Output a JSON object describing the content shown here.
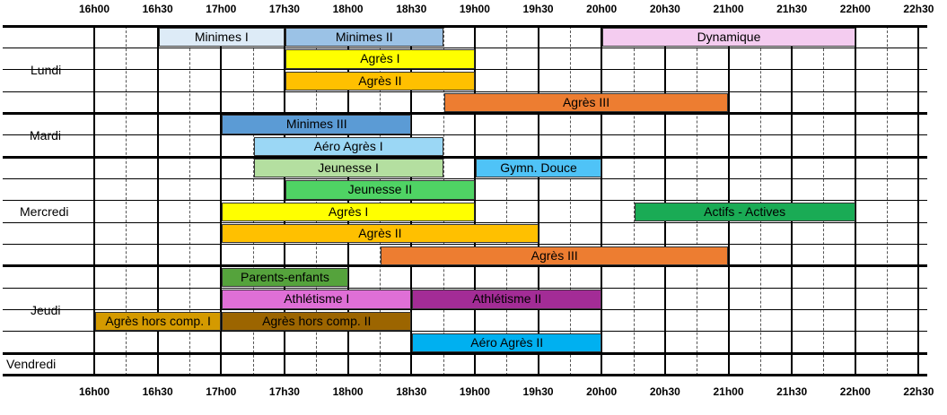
{
  "times": [
    "16h00",
    "16h30",
    "17h00",
    "17h30",
    "18h00",
    "18h30",
    "19h00",
    "19h30",
    "20h00",
    "20h30",
    "21h00",
    "21h30",
    "22h00",
    "22h30"
  ],
  "days": [
    {
      "name": "Lundi",
      "rows": 4
    },
    {
      "name": "Mardi",
      "rows": 2
    },
    {
      "name": "Mercredi",
      "rows": 5
    },
    {
      "name": "Jeudi",
      "rows": 4
    },
    {
      "name": "Vendredi",
      "rows": 1
    }
  ],
  "activities": [
    {
      "day": 0,
      "row": 0,
      "start": 16.5,
      "end": 17.5,
      "label": "Minimes I",
      "color": "#ddebf7"
    },
    {
      "day": 0,
      "row": 0,
      "start": 17.5,
      "end": 18.75,
      "label": "Minimes II",
      "color": "#9bc2e6"
    },
    {
      "day": 0,
      "row": 0,
      "start": 20.0,
      "end": 22.0,
      "label": "Dynamique",
      "color": "#f4ccf0"
    },
    {
      "day": 0,
      "row": 1,
      "start": 17.5,
      "end": 19.0,
      "label": "Agrès I",
      "color": "#ffff00"
    },
    {
      "day": 0,
      "row": 2,
      "start": 17.5,
      "end": 19.0,
      "label": "Agrès II",
      "color": "#ffc000"
    },
    {
      "day": 0,
      "row": 3,
      "start": 18.75,
      "end": 21.0,
      "label": "Agrès III",
      "color": "#ed7d31"
    },
    {
      "day": 1,
      "row": 0,
      "start": 17.0,
      "end": 18.5,
      "label": "Minimes III",
      "color": "#5b9bd5"
    },
    {
      "day": 1,
      "row": 1,
      "start": 17.25,
      "end": 18.75,
      "label": "Aéro Agrès I",
      "color": "#9bd7f5"
    },
    {
      "day": 2,
      "row": 0,
      "start": 17.25,
      "end": 18.75,
      "label": "Jeunesse I",
      "color": "#b4dfa0"
    },
    {
      "day": 2,
      "row": 0,
      "start": 19.0,
      "end": 20.0,
      "label": "Gymn. Douce",
      "color": "#4fc3f7"
    },
    {
      "day": 2,
      "row": 1,
      "start": 17.5,
      "end": 19.0,
      "label": "Jeunesse II",
      "color": "#4fd364"
    },
    {
      "day": 2,
      "row": 2,
      "start": 17.0,
      "end": 19.0,
      "label": "Agrès I",
      "color": "#ffff00"
    },
    {
      "day": 2,
      "row": 2,
      "start": 20.25,
      "end": 22.0,
      "label": "Actifs - Actives",
      "color": "#1aab55"
    },
    {
      "day": 2,
      "row": 3,
      "start": 17.0,
      "end": 19.5,
      "label": "Agrès II",
      "color": "#ffc000"
    },
    {
      "day": 2,
      "row": 4,
      "start": 18.25,
      "end": 21.0,
      "label": "Agrès III",
      "color": "#ed7d31"
    },
    {
      "day": 3,
      "row": 0,
      "start": 17.0,
      "end": 18.0,
      "label": "Parents-enfants",
      "color": "#55a33c"
    },
    {
      "day": 3,
      "row": 1,
      "start": 17.0,
      "end": 18.5,
      "label": "Athlétisme I",
      "color": "#df6fd6"
    },
    {
      "day": 3,
      "row": 1,
      "start": 18.5,
      "end": 20.0,
      "label": "Athlétisme II",
      "color": "#a32c96"
    },
    {
      "day": 3,
      "row": 2,
      "start": 16.0,
      "end": 17.0,
      "label": "Agrès hors comp. I",
      "color": "#d49a00"
    },
    {
      "day": 3,
      "row": 2,
      "start": 17.0,
      "end": 18.5,
      "label": "Agrès hors comp. II",
      "color": "#9c6500"
    },
    {
      "day": 3,
      "row": 3,
      "start": 18.5,
      "end": 20.0,
      "label": "Aéro Agrès II",
      "color": "#00b0f0"
    }
  ]
}
